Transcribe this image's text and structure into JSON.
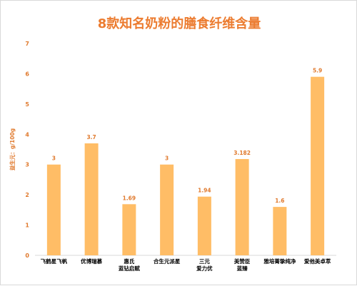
{
  "chart_data": {
    "type": "bar",
    "title": "8款知名奶粉的膳食纤维含量",
    "ylabel": "益生元：g/100g",
    "ylim": [
      0,
      7
    ],
    "yticks": [
      0,
      1,
      2,
      3,
      4,
      5,
      6,
      7
    ],
    "grid": false,
    "legend": "none",
    "bar_color": "#ffbd66",
    "categories": [
      [
        "飞鹤星飞帆"
      ],
      [
        "优博瑞慕"
      ],
      [
        "惠氏",
        "蓝钻启赋"
      ],
      [
        "合生元派星"
      ],
      [
        "三元",
        "爱力优"
      ],
      [
        "美赞臣",
        "蓝臻"
      ],
      [
        "雅培菁挚纯净"
      ],
      [
        "爱他美卓萃"
      ]
    ],
    "values": [
      3,
      3.7,
      1.69,
      3,
      1.94,
      3.182,
      1.6,
      5.9
    ],
    "value_labels": [
      "3",
      "3.7",
      "1.69",
      "3",
      "1.94",
      "3.182",
      "1.6",
      "5.9"
    ]
  }
}
